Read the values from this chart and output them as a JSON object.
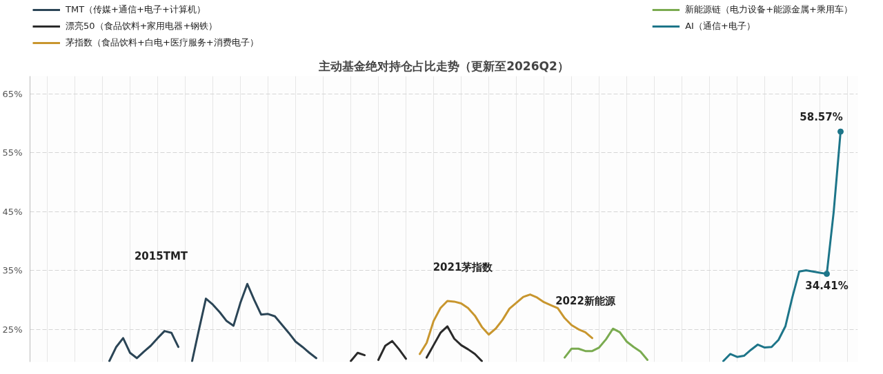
{
  "chart_data": {
    "type": "line",
    "title": "主动基金绝对持仓占比走势（更新至2026Q2）",
    "categories": [
      null,
      null,
      null,
      null,
      null,
      null,
      null,
      null,
      null,
      null,
      null,
      null,
      null,
      null,
      null,
      null,
      null,
      null,
      null,
      null,
      null,
      null,
      null,
      null,
      null,
      null,
      null,
      null,
      null,
      null,
      null,
      null,
      null,
      null,
      null,
      null,
      null,
      null,
      null,
      null,
      null,
      null,
      null,
      null,
      null,
      null,
      null,
      null,
      null,
      null,
      null,
      null,
      null,
      null,
      null,
      null,
      null,
      null,
      null,
      null,
      null,
      null,
      null,
      null,
      null,
      null,
      null,
      null,
      null,
      null,
      null,
      null,
      null,
      null,
      null,
      null,
      null,
      null,
      null,
      null,
      null,
      null,
      null,
      null,
      null,
      null,
      null,
      null,
      null,
      null,
      null,
      null,
      null,
      null,
      null,
      null,
      null,
      null,
      null,
      null,
      null,
      null,
      null,
      null,
      null,
      null,
      null,
      null,
      null,
      null,
      null,
      null,
      null,
      null,
      null,
      null,
      null,
      null,
      null,
      null
    ],
    "ylim": [
      19.45,
      68
    ],
    "yticks": [
      {
        "value": 25,
        "label": "25%"
      },
      {
        "value": 35,
        "label": "35%"
      },
      {
        "value": 45,
        "label": "45%"
      },
      {
        "value": 55,
        "label": "55%"
      },
      {
        "value": 65,
        "label": "65%"
      }
    ],
    "grid": true,
    "legend": "top",
    "tick_labels": "y",
    "series": [
      {
        "name": "TMT（传媒+通信+电子+计算机）",
        "color": "#2b4556",
        "values": [
          null,
          null,
          null,
          null,
          null,
          null,
          null,
          null,
          null,
          null,
          null,
          19.6,
          22.0,
          23.5,
          21.0,
          20.1,
          21.2,
          22.2,
          23.5,
          24.7,
          24.4,
          22.0,
          null,
          19.6,
          25.0,
          30.2,
          29.2,
          27.9,
          26.4,
          25.6,
          29.5,
          32.7,
          30.0,
          27.5,
          27.6,
          27.2,
          25.8,
          24.4,
          22.9,
          22.0,
          21.0,
          20.1,
          null,
          null,
          null,
          null,
          null,
          null,
          null,
          null,
          null,
          null,
          null,
          null,
          null,
          null,
          null,
          null,
          null,
          null,
          null,
          null,
          null,
          null,
          null,
          null,
          null,
          null,
          null,
          null,
          null,
          null,
          null,
          null,
          null,
          null,
          null,
          null,
          null,
          null,
          null,
          null,
          null,
          null,
          null,
          null,
          null,
          null,
          null,
          null,
          null,
          null,
          null,
          null,
          null,
          null,
          null,
          null,
          null,
          null,
          null,
          null,
          null,
          null,
          null,
          null,
          null,
          null,
          null,
          null,
          null,
          null,
          null,
          null,
          null,
          null,
          null,
          null,
          null,
          null
        ]
      },
      {
        "name": "漂亮50（食品饮料+家用电器+钢铁）",
        "color": "#2a2a2a",
        "values": [
          null,
          null,
          null,
          null,
          null,
          null,
          null,
          null,
          null,
          null,
          null,
          null,
          null,
          null,
          null,
          null,
          null,
          null,
          null,
          null,
          null,
          null,
          null,
          null,
          null,
          null,
          null,
          null,
          null,
          null,
          null,
          null,
          null,
          null,
          null,
          null,
          null,
          null,
          null,
          null,
          null,
          null,
          null,
          null,
          null,
          null,
          19.6,
          21.0,
          20.6,
          null,
          19.8,
          22.2,
          23.0,
          21.6,
          20.0,
          null,
          null,
          20.2,
          22.3,
          24.4,
          25.5,
          23.4,
          22.3,
          21.6,
          20.8,
          19.6,
          null,
          null,
          null,
          null,
          null,
          null,
          null,
          null,
          null,
          null,
          null,
          null,
          null,
          null,
          null,
          null,
          null,
          null,
          null,
          null,
          null,
          null,
          null,
          null,
          null,
          null,
          null,
          null,
          null,
          null,
          null,
          null,
          null,
          null,
          null,
          null,
          null,
          null,
          null,
          null,
          null,
          null,
          null,
          null,
          null,
          null,
          null,
          null,
          null,
          null,
          null,
          null,
          null,
          null
        ]
      },
      {
        "name": "茅指数（食品饮料+白电+医疗服务+消费电子）",
        "color": "#c8962e",
        "values": [
          null,
          null,
          null,
          null,
          null,
          null,
          null,
          null,
          null,
          null,
          null,
          null,
          null,
          null,
          null,
          null,
          null,
          null,
          null,
          null,
          null,
          null,
          null,
          null,
          null,
          null,
          null,
          null,
          null,
          null,
          null,
          null,
          null,
          null,
          null,
          null,
          null,
          null,
          null,
          null,
          null,
          null,
          null,
          null,
          null,
          null,
          null,
          null,
          null,
          null,
          null,
          null,
          null,
          null,
          null,
          null,
          20.8,
          22.7,
          26.4,
          28.6,
          29.8,
          29.7,
          29.4,
          28.6,
          27.3,
          25.4,
          24.1,
          25.1,
          26.6,
          28.5,
          29.5,
          30.5,
          30.9,
          30.4,
          29.6,
          29.1,
          28.6,
          26.9,
          25.7,
          25.0,
          24.5,
          23.5,
          null,
          null,
          null,
          null,
          null,
          null,
          null,
          null,
          null,
          null,
          null,
          null,
          null,
          null,
          null,
          null,
          null,
          null,
          null,
          null,
          null,
          null,
          null,
          null,
          null,
          null,
          null,
          null,
          null,
          null,
          null,
          null,
          null,
          null,
          null,
          null,
          null,
          null
        ]
      },
      {
        "name": "新能源链（电力设备+能源金属+乘用车）",
        "color": "#7aab50",
        "values": [
          null,
          null,
          null,
          null,
          null,
          null,
          null,
          null,
          null,
          null,
          null,
          null,
          null,
          null,
          null,
          null,
          null,
          null,
          null,
          null,
          null,
          null,
          null,
          null,
          null,
          null,
          null,
          null,
          null,
          null,
          null,
          null,
          null,
          null,
          null,
          null,
          null,
          null,
          null,
          null,
          null,
          null,
          null,
          null,
          null,
          null,
          null,
          null,
          null,
          null,
          null,
          null,
          null,
          null,
          null,
          null,
          null,
          null,
          null,
          null,
          null,
          null,
          null,
          null,
          null,
          null,
          null,
          null,
          null,
          null,
          null,
          null,
          null,
          null,
          null,
          null,
          null,
          20.2,
          21.7,
          21.7,
          21.3,
          21.3,
          21.9,
          23.3,
          25.1,
          24.5,
          22.9,
          22.0,
          21.2,
          19.8,
          null,
          null,
          null,
          null,
          null,
          null,
          null,
          null,
          null,
          null,
          null,
          null,
          null,
          null,
          null,
          null,
          null,
          null,
          null,
          null,
          null,
          null,
          null,
          null,
          null,
          null,
          null,
          null,
          null,
          null
        ]
      },
      {
        "name": "AI（通信+电子）",
        "color": "#1d7589",
        "values": [
          null,
          null,
          null,
          null,
          null,
          null,
          null,
          null,
          null,
          null,
          null,
          null,
          null,
          null,
          null,
          null,
          null,
          null,
          null,
          null,
          null,
          null,
          null,
          null,
          null,
          null,
          null,
          null,
          null,
          null,
          null,
          null,
          null,
          null,
          null,
          null,
          null,
          null,
          null,
          null,
          null,
          null,
          null,
          null,
          null,
          null,
          null,
          null,
          null,
          null,
          null,
          null,
          null,
          null,
          null,
          null,
          null,
          null,
          null,
          null,
          null,
          null,
          null,
          null,
          null,
          null,
          null,
          null,
          null,
          null,
          null,
          null,
          null,
          null,
          null,
          null,
          null,
          null,
          null,
          null,
          null,
          null,
          null,
          null,
          null,
          null,
          null,
          null,
          null,
          null,
          null,
          null,
          null,
          null,
          null,
          null,
          null,
          null,
          null,
          null,
          19.6,
          20.8,
          20.3,
          20.5,
          21.5,
          22.4,
          21.9,
          22.0,
          23.2,
          25.5,
          30.4,
          34.8,
          35.0,
          34.8,
          34.6,
          34.41,
          44.9,
          58.57,
          null,
          null
        ],
        "value_labels": [
          null,
          null,
          null,
          null,
          null,
          null,
          null,
          null,
          null,
          null,
          null,
          null,
          null,
          null,
          null,
          null,
          null,
          null,
          null,
          null,
          null,
          null,
          null,
          null,
          null,
          null,
          null,
          null,
          null,
          null,
          null,
          null,
          null,
          null,
          null,
          null,
          null,
          null,
          null,
          null,
          null,
          null,
          null,
          null,
          null,
          null,
          null,
          null,
          null,
          null,
          null,
          null,
          null,
          null,
          null,
          null,
          null,
          null,
          null,
          null,
          null,
          null,
          null,
          null,
          null,
          null,
          null,
          null,
          null,
          null,
          null,
          null,
          null,
          null,
          null,
          null,
          null,
          null,
          null,
          null,
          null,
          null,
          null,
          null,
          null,
          null,
          null,
          null,
          null,
          null,
          null,
          null,
          null,
          null,
          null,
          null,
          null,
          null,
          null,
          null,
          null,
          null,
          null,
          null,
          null,
          null,
          null,
          null,
          null,
          null,
          null,
          null,
          null,
          null,
          null,
          "34.41%",
          null,
          "58.57%",
          null,
          null
        ]
      }
    ],
    "annotations": [
      "2015TMT",
      "2021茅指数",
      "2022新能源"
    ]
  }
}
